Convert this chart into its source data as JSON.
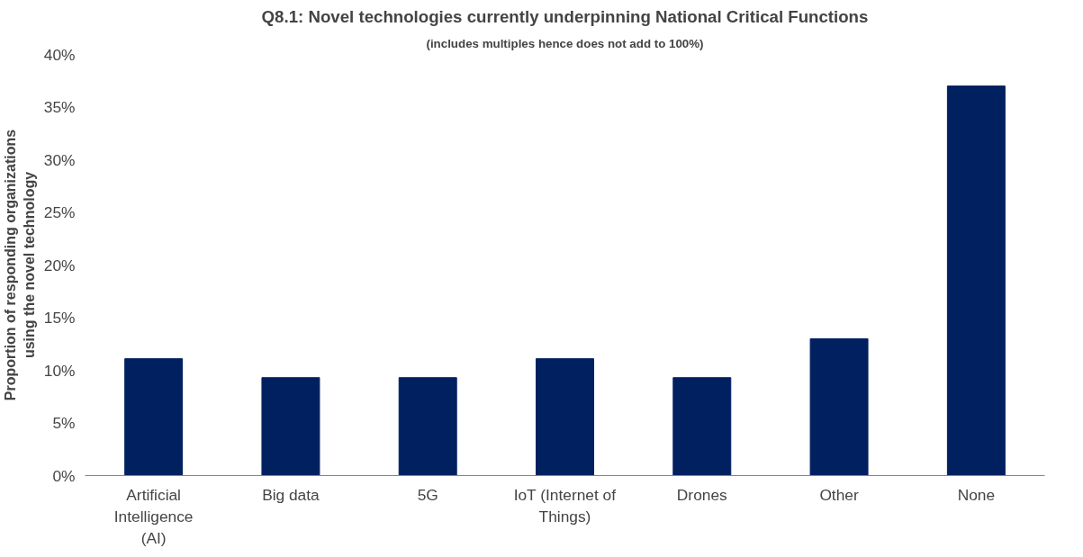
{
  "chart_data": {
    "type": "bar",
    "title": "Q8.1: Novel technologies currently underpinning National Critical Functions",
    "subtitle": "(includes multiples hence does not add to 100%)",
    "ylabel": "Proportion of responding organizations using the novel technology",
    "categories": [
      "Artificial Intelligence (AI)",
      "Big data",
      "5G",
      "IoT (Internet of Things)",
      "Drones",
      "Other",
      "None"
    ],
    "values": [
      11.1,
      9.3,
      9.3,
      11.1,
      9.3,
      13.0,
      37.0
    ],
    "color": "#002060",
    "ylim": [
      0,
      40
    ],
    "yticks": [
      {
        "value": 0,
        "label": "0%"
      },
      {
        "value": 5,
        "label": "5%"
      },
      {
        "value": 10,
        "label": "10%"
      },
      {
        "value": 15,
        "label": "15%"
      },
      {
        "value": 20,
        "label": "20%"
      },
      {
        "value": 25,
        "label": "25%"
      },
      {
        "value": 30,
        "label": "30%"
      },
      {
        "value": 35,
        "label": "35%"
      },
      {
        "value": 40,
        "label": "40%"
      }
    ],
    "grid": false
  }
}
